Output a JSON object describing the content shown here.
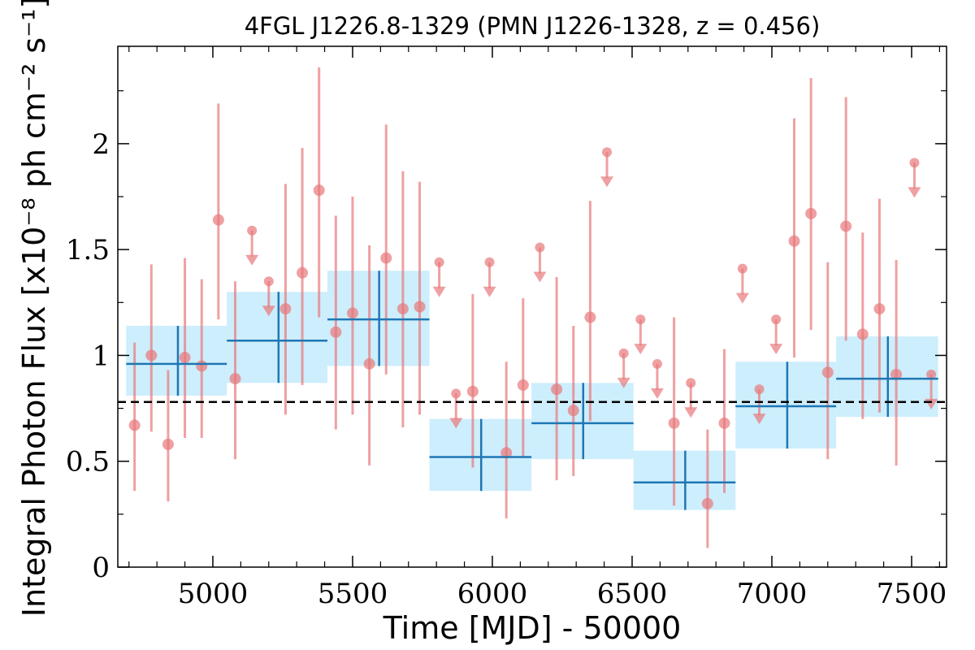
{
  "chart_data": {
    "type": "scatter",
    "title": "4FGL J1226.8-1329 (PMN J1226-1328, z = 0.456)",
    "xlabel": "Time [MJD] - 50000",
    "ylabel": "Integral Photon Flux [x10⁻⁸ ph cm⁻² s⁻¹]",
    "xlim": [
      4660,
      7625
    ],
    "ylim": [
      0,
      2.46
    ],
    "x_ticks": [
      5000,
      5500,
      6000,
      6500,
      7000,
      7500
    ],
    "y_ticks": [
      0,
      0.5,
      1,
      1.5,
      2
    ],
    "y_tick_labels": [
      "0",
      "0.5",
      "1",
      "1.5",
      "2"
    ],
    "grid": false,
    "reference_line": {
      "y": 0.78,
      "style": "dashed"
    },
    "colors": {
      "points": "#e8787a",
      "bins": "#1f77b4",
      "bin_band": "#cdeefc",
      "reference": "#000000"
    },
    "series": [
      {
        "type": "binned",
        "bins": [
          {
            "x0": 4690,
            "x1": 5050,
            "x": 4875,
            "y": 0.96,
            "ylo": 0.81,
            "yhi": 1.14
          },
          {
            "x0": 5050,
            "x1": 5410,
            "x": 5235,
            "y": 1.07,
            "ylo": 0.87,
            "yhi": 1.3
          },
          {
            "x0": 5410,
            "x1": 5775,
            "x": 5595,
            "y": 1.17,
            "ylo": 0.95,
            "yhi": 1.4
          },
          {
            "x0": 5775,
            "x1": 6140,
            "x": 5960,
            "y": 0.52,
            "ylo": 0.36,
            "yhi": 0.7
          },
          {
            "x0": 6140,
            "x1": 6505,
            "x": 6325,
            "y": 0.68,
            "ylo": 0.51,
            "yhi": 0.87
          },
          {
            "x0": 6505,
            "x1": 6870,
            "x": 6690,
            "y": 0.4,
            "ylo": 0.27,
            "yhi": 0.55
          },
          {
            "x0": 6870,
            "x1": 7230,
            "x": 7055,
            "y": 0.76,
            "ylo": 0.56,
            "yhi": 0.97
          },
          {
            "x0": 7230,
            "x1": 7595,
            "x": 7415,
            "y": 0.89,
            "ylo": 0.71,
            "yhi": 1.09
          }
        ]
      },
      {
        "type": "points",
        "points": [
          {
            "x": 4720,
            "y": 0.67,
            "ylo": 0.36,
            "yhi": 1.06
          },
          {
            "x": 4780,
            "y": 1.0,
            "ylo": 0.64,
            "yhi": 1.43
          },
          {
            "x": 4840,
            "y": 0.58,
            "ylo": 0.31,
            "yhi": 0.93
          },
          {
            "x": 4900,
            "y": 0.99,
            "ylo": 0.61,
            "yhi": 1.46
          },
          {
            "x": 4960,
            "y": 0.95,
            "ylo": 0.61,
            "yhi": 1.36
          },
          {
            "x": 5020,
            "y": 1.64,
            "ylo": 1.17,
            "yhi": 2.19
          },
          {
            "x": 5080,
            "y": 0.89,
            "ylo": 0.51,
            "yhi": 1.35
          },
          {
            "x": 5140,
            "y": 1.59,
            "ul": true
          },
          {
            "x": 5200,
            "y": 1.35,
            "ul": true
          },
          {
            "x": 5260,
            "y": 1.22,
            "ylo": 0.72,
            "yhi": 1.81
          },
          {
            "x": 5320,
            "y": 1.39,
            "ylo": 0.86,
            "yhi": 1.98
          },
          {
            "x": 5380,
            "y": 1.78,
            "ylo": 1.18,
            "yhi": 2.36
          },
          {
            "x": 5440,
            "y": 1.11,
            "ylo": 0.65,
            "yhi": 1.66
          },
          {
            "x": 5500,
            "y": 1.2,
            "ylo": 0.72,
            "yhi": 1.75
          },
          {
            "x": 5560,
            "y": 0.96,
            "ylo": 0.48,
            "yhi": 1.52
          },
          {
            "x": 5620,
            "y": 1.46,
            "ylo": 0.91,
            "yhi": 2.09
          },
          {
            "x": 5680,
            "y": 1.22,
            "ylo": 0.66,
            "yhi": 1.87
          },
          {
            "x": 5740,
            "y": 1.23,
            "ylo": 0.72,
            "yhi": 1.82
          },
          {
            "x": 5810,
            "y": 1.44,
            "ul": true
          },
          {
            "x": 5870,
            "y": 0.82,
            "ul": true
          },
          {
            "x": 5930,
            "y": 0.83,
            "ylo": 0.47,
            "yhi": 1.29
          },
          {
            "x": 5990,
            "y": 1.44,
            "ul": true
          },
          {
            "x": 6050,
            "y": 0.54,
            "ylo": 0.23,
            "yhi": 0.97
          },
          {
            "x": 6110,
            "y": 0.86,
            "ylo": 0.52,
            "yhi": 1.27
          },
          {
            "x": 6170,
            "y": 1.51,
            "ul": true
          },
          {
            "x": 6230,
            "y": 0.84,
            "ylo": 0.41,
            "yhi": 1.37
          },
          {
            "x": 6290,
            "y": 0.74,
            "ylo": 0.43,
            "yhi": 1.14
          },
          {
            "x": 6350,
            "y": 1.18,
            "ylo": 0.69,
            "yhi": 1.73
          },
          {
            "x": 6410,
            "y": 1.96,
            "ul": true
          },
          {
            "x": 6470,
            "y": 1.01,
            "ul": true
          },
          {
            "x": 6530,
            "y": 1.17,
            "ul": true
          },
          {
            "x": 6590,
            "y": 0.96,
            "ul": true
          },
          {
            "x": 6650,
            "y": 0.68,
            "ylo": 0.29,
            "yhi": 1.18
          },
          {
            "x": 6710,
            "y": 0.87,
            "ul": true
          },
          {
            "x": 6770,
            "y": 0.3,
            "ylo": 0.09,
            "yhi": 0.65
          },
          {
            "x": 6830,
            "y": 0.68,
            "ylo": 0.35,
            "yhi": 1.03
          },
          {
            "x": 6895,
            "y": 1.41,
            "ul": true
          },
          {
            "x": 6955,
            "y": 0.84,
            "ul": true
          },
          {
            "x": 7015,
            "y": 1.17,
            "ul": true
          },
          {
            "x": 7080,
            "y": 1.54,
            "ylo": 0.99,
            "yhi": 2.12
          },
          {
            "x": 7140,
            "y": 1.67,
            "ylo": 1.12,
            "yhi": 2.31
          },
          {
            "x": 7200,
            "y": 0.92,
            "ylo": 0.51,
            "yhi": 1.44
          },
          {
            "x": 7265,
            "y": 1.61,
            "ylo": 1.07,
            "yhi": 2.22
          },
          {
            "x": 7325,
            "y": 1.1,
            "ylo": 0.7,
            "yhi": 1.58
          },
          {
            "x": 7385,
            "y": 1.22,
            "ylo": 0.73,
            "yhi": 1.74
          },
          {
            "x": 7445,
            "y": 0.91,
            "ylo": 0.48,
            "yhi": 1.45
          },
          {
            "x": 7510,
            "y": 1.91,
            "ul": true
          },
          {
            "x": 7570,
            "y": 0.91,
            "ul": true
          }
        ]
      }
    ]
  }
}
